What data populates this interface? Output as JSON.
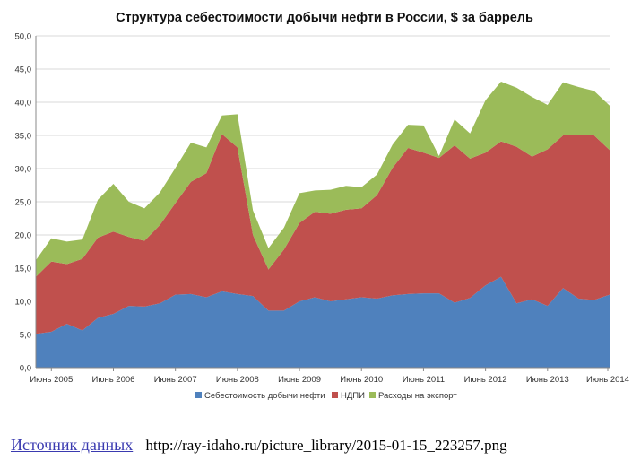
{
  "chart_data": {
    "type": "area",
    "stacked": true,
    "title": "Структура себестоимости добычи нефти в России, $ за баррель",
    "xlabel": "",
    "ylabel": "",
    "ylim": [
      0,
      50
    ],
    "yticks": [
      "0,0",
      "5,0",
      "10,0",
      "15,0",
      "20,0",
      "25,0",
      "30,0",
      "35,0",
      "40,0",
      "45,0",
      "50,0"
    ],
    "xticks": [
      "Июнь 2005",
      "Июнь 2006",
      "Июнь 2007",
      "Июнь 2008",
      "Июнь 2009",
      "Июнь 2010",
      "Июнь 2011",
      "Июнь 2012",
      "Июнь 2013",
      "Июнь 2014"
    ],
    "grid": true,
    "legend_position": "bottom",
    "x_period": "quarterly, 2005 Q1 – 2014 Q3",
    "series": [
      {
        "name": "Себестоимость добычи нефти",
        "color": "#4f81bd",
        "values": [
          5.1,
          5.4,
          6.6,
          5.6,
          7.5,
          8.1,
          9.3,
          9.2,
          9.7,
          11.0,
          11.1,
          10.6,
          11.5,
          11.1,
          10.8,
          8.6,
          8.6,
          10.0,
          10.6,
          10.0,
          10.3,
          10.6,
          10.4,
          10.9,
          11.1,
          11.2,
          11.2,
          9.8,
          10.5,
          12.4,
          13.7,
          9.7,
          10.3,
          9.3,
          12.0,
          10.4,
          10.2,
          11.0
        ]
      },
      {
        "name": "НДПИ",
        "color": "#c0504d",
        "values": [
          8.6,
          10.6,
          9.0,
          10.8,
          12.1,
          12.4,
          10.4,
          9.9,
          11.8,
          13.8,
          16.9,
          18.7,
          23.7,
          22.1,
          9.2,
          6.2,
          9.2,
          11.8,
          12.9,
          13.2,
          13.5,
          13.4,
          15.6,
          19.2,
          22.0,
          21.2,
          20.4,
          23.7,
          21.0,
          20.0,
          20.4,
          23.6,
          21.5,
          23.6,
          23.0,
          24.6,
          24.8,
          21.8
        ]
      },
      {
        "name": "Расходы на экспорт",
        "color": "#9bbb59",
        "values": [
          2.5,
          3.5,
          3.4,
          2.9,
          5.7,
          7.2,
          5.3,
          4.9,
          4.9,
          5.3,
          5.9,
          3.9,
          2.8,
          5.0,
          3.7,
          3.2,
          3.3,
          4.5,
          3.2,
          3.6,
          3.6,
          3.2,
          3.1,
          3.5,
          3.5,
          4.1,
          0.3,
          3.9,
          3.8,
          7.9,
          9.0,
          8.9,
          9.0,
          6.7,
          8.0,
          7.3,
          6.7,
          6.7
        ]
      }
    ]
  },
  "footer": {
    "source_link_label": "Источник данных",
    "source_url_text": "http://ray-idaho.ru/picture_library/2015-01-15_223257.png"
  }
}
